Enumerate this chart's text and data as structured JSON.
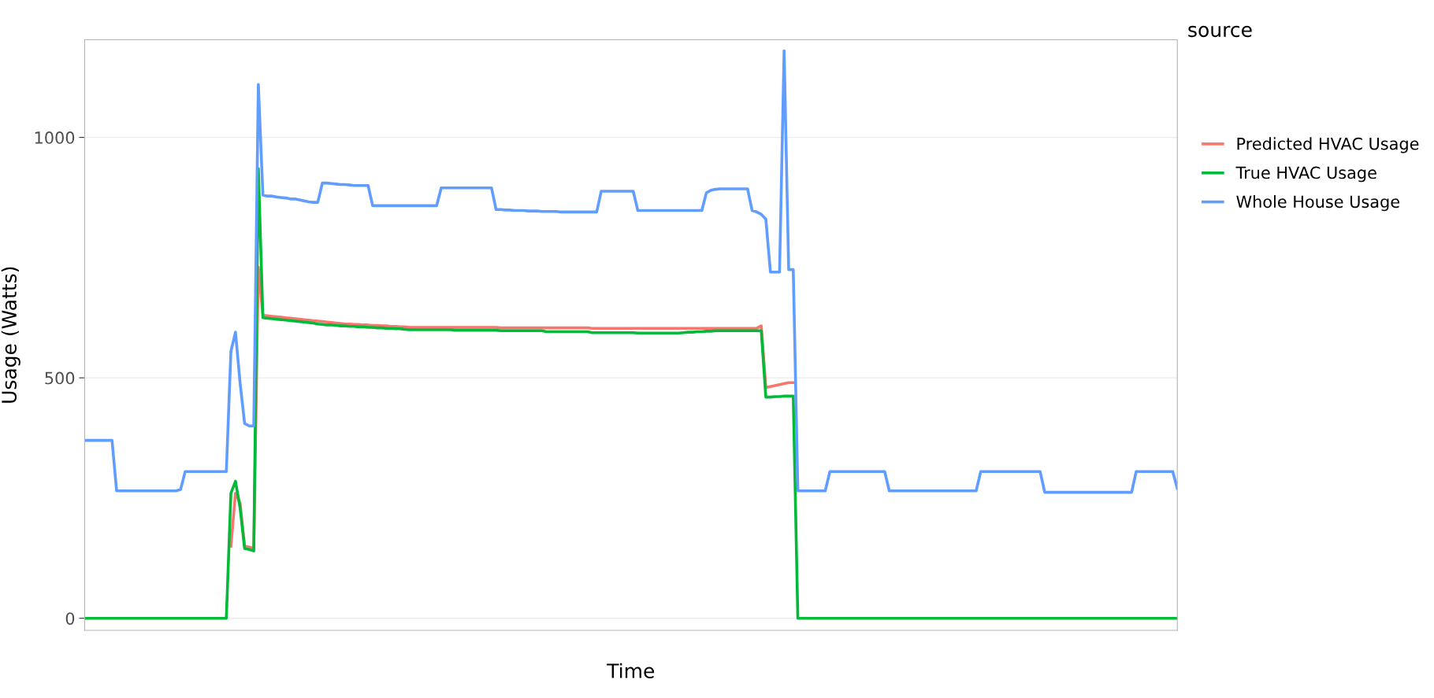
{
  "chart_data": {
    "type": "line",
    "xlabel": "Time",
    "ylabel": "Usage (Watts)",
    "legend_title": "source",
    "legend": "right",
    "grid": "y",
    "tick_labels": "y",
    "ylim": [
      -25,
      1203
    ],
    "yticks": [
      0,
      500,
      1000
    ],
    "categories": [
      null,
      null,
      null,
      null,
      null,
      null,
      null,
      null,
      null,
      null,
      null,
      null,
      null,
      null,
      null,
      null,
      null,
      null,
      null,
      null,
      null,
      null,
      null,
      null,
      null,
      null,
      null,
      null,
      null,
      null,
      null,
      null,
      null,
      null,
      null,
      null,
      null,
      null,
      null,
      null,
      null,
      null,
      null,
      null,
      null,
      null,
      null,
      null,
      null,
      null,
      null,
      null,
      null,
      null,
      null,
      null,
      null,
      null,
      null,
      null,
      null,
      null,
      null,
      null,
      null,
      null,
      null,
      null,
      null,
      null,
      null,
      null,
      null,
      null,
      null,
      null,
      null,
      null,
      null,
      null,
      null,
      null,
      null,
      null,
      null,
      null,
      null,
      null,
      null,
      null,
      null,
      null,
      null,
      null,
      null,
      null,
      null,
      null,
      null,
      null,
      null,
      null,
      null,
      null,
      null,
      null,
      null,
      null,
      null,
      null,
      null,
      null,
      null,
      null,
      null,
      null,
      null,
      null,
      null,
      null,
      null,
      null,
      null,
      null,
      null,
      null,
      null,
      null,
      null,
      null,
      null,
      null,
      null,
      null,
      null,
      null,
      null,
      null,
      null,
      null,
      null,
      null,
      null,
      null,
      null,
      null,
      null,
      null,
      null,
      null,
      null,
      null,
      null,
      null,
      null,
      null,
      null,
      null,
      null,
      null,
      null,
      null,
      null,
      null,
      null,
      null,
      null,
      null,
      null,
      null,
      null,
      null,
      null,
      null,
      null,
      null,
      null,
      null,
      null,
      null,
      null,
      null,
      null,
      null,
      null,
      null,
      null,
      null,
      null,
      null,
      null,
      null,
      null,
      null,
      null,
      null,
      null,
      null,
      null,
      null,
      null,
      null,
      null,
      null,
      null,
      null,
      null,
      null,
      null,
      null,
      null,
      null,
      null,
      null,
      null,
      null,
      null,
      null,
      null,
      null,
      null,
      null,
      null,
      null,
      null,
      null,
      null,
      null,
      null,
      null,
      null,
      null,
      null,
      null,
      null,
      null,
      null,
      null,
      null,
      null
    ],
    "series": [
      {
        "name": "Predicted HVAC Usage",
        "color": "#f8766d",
        "values": [
          null,
          null,
          null,
          null,
          null,
          null,
          null,
          null,
          null,
          null,
          null,
          null,
          null,
          null,
          null,
          null,
          null,
          null,
          null,
          null,
          null,
          null,
          null,
          null,
          null,
          null,
          null,
          null,
          null,
          null,
          null,
          null,
          150,
          260,
          240,
          150,
          148,
          145,
          730,
          630,
          629,
          628,
          627,
          626,
          625,
          624,
          623,
          622,
          621,
          620,
          619,
          618,
          617,
          616,
          615,
          614,
          613,
          612,
          612,
          611,
          611,
          610,
          610,
          609,
          609,
          608,
          608,
          607,
          607,
          606,
          606,
          605,
          605,
          605,
          605,
          605,
          605,
          605,
          605,
          605,
          605,
          605,
          605,
          605,
          605,
          605,
          605,
          605,
          605,
          605,
          605,
          604,
          604,
          604,
          604,
          604,
          604,
          604,
          604,
          604,
          604,
          604,
          604,
          604,
          604,
          604,
          604,
          604,
          604,
          604,
          604,
          603,
          603,
          603,
          603,
          603,
          603,
          603,
          603,
          603,
          603,
          603,
          603,
          603,
          603,
          603,
          603,
          603,
          603,
          603,
          603,
          603,
          603,
          603,
          603,
          603,
          603,
          603,
          603,
          603,
          603,
          603,
          603,
          603,
          603,
          603,
          603,
          603,
          608,
          480,
          482,
          484,
          486,
          488,
          490,
          490,
          null,
          null,
          null,
          null,
          null,
          null,
          null,
          null,
          null,
          null,
          null,
          null,
          null,
          null,
          null,
          null,
          null,
          null,
          null,
          null,
          null,
          null,
          null,
          null,
          null,
          null,
          null,
          null,
          null,
          null,
          null,
          null,
          null,
          null,
          null,
          null,
          null,
          null,
          null,
          null,
          null,
          null,
          null,
          null,
          null,
          null,
          null,
          null,
          null,
          null,
          null,
          null,
          null,
          null,
          null,
          null,
          null,
          null,
          null,
          null,
          null,
          null,
          null,
          null,
          null,
          null,
          null,
          null,
          null,
          null,
          null,
          null,
          null,
          null,
          null,
          null,
          null,
          null,
          null,
          null,
          null,
          null,
          null,
          null
        ]
      },
      {
        "name": "True HVAC Usage",
        "color": "#00ba38",
        "values": [
          0,
          0,
          0,
          0,
          0,
          0,
          0,
          0,
          0,
          0,
          0,
          0,
          0,
          0,
          0,
          0,
          0,
          0,
          0,
          0,
          0,
          0,
          0,
          0,
          0,
          0,
          0,
          0,
          0,
          0,
          0,
          0,
          260,
          285,
          230,
          145,
          143,
          140,
          935,
          625,
          624,
          623,
          622,
          621,
          620,
          619,
          618,
          617,
          616,
          615,
          614,
          612,
          611,
          610,
          610,
          609,
          608,
          608,
          607,
          607,
          606,
          606,
          605,
          605,
          604,
          604,
          603,
          603,
          602,
          602,
          601,
          600,
          600,
          600,
          600,
          600,
          600,
          600,
          600,
          600,
          600,
          599,
          599,
          599,
          599,
          599,
          599,
          599,
          599,
          599,
          599,
          598,
          598,
          598,
          598,
          598,
          598,
          598,
          598,
          598,
          598,
          596,
          596,
          596,
          596,
          596,
          596,
          596,
          596,
          596,
          596,
          594,
          594,
          594,
          594,
          594,
          594,
          594,
          594,
          594,
          594,
          593,
          593,
          593,
          593,
          593,
          593,
          593,
          593,
          593,
          593,
          594,
          595,
          595,
          596,
          596,
          597,
          597,
          598,
          598,
          598,
          598,
          598,
          598,
          598,
          598,
          598,
          598,
          598,
          460,
          460,
          461,
          461,
          462,
          462,
          462,
          0,
          0,
          0,
          0,
          0,
          0,
          0,
          0,
          0,
          0,
          0,
          0,
          0,
          0,
          0,
          0,
          0,
          0,
          0,
          0,
          0,
          0,
          0,
          0,
          0,
          0,
          0,
          0,
          0,
          0,
          0,
          0,
          0,
          0,
          0,
          0,
          0,
          0,
          0,
          0,
          0,
          0,
          0,
          0,
          0,
          0,
          0,
          0,
          0,
          0,
          0,
          0,
          0,
          0,
          0,
          0,
          0,
          0,
          0,
          0,
          0,
          0,
          0,
          0,
          0,
          0,
          0,
          0,
          0,
          0,
          0,
          0,
          0,
          0,
          0,
          0,
          0,
          0,
          0,
          0,
          0,
          0,
          0,
          0
        ]
      },
      {
        "name": "Whole House Usage",
        "color": "#619cff",
        "values": [
          370,
          370,
          370,
          370,
          370,
          370,
          370,
          265,
          265,
          265,
          265,
          265,
          265,
          265,
          265,
          265,
          265,
          265,
          265,
          265,
          265,
          268,
          305,
          305,
          305,
          305,
          305,
          305,
          305,
          305,
          305,
          305,
          555,
          595,
          490,
          405,
          400,
          400,
          1110,
          880,
          878,
          878,
          876,
          875,
          874,
          872,
          872,
          870,
          868,
          866,
          865,
          865,
          905,
          905,
          904,
          903,
          902,
          902,
          901,
          900,
          900,
          900,
          900,
          858,
          858,
          858,
          858,
          858,
          858,
          858,
          858,
          858,
          858,
          858,
          858,
          858,
          858,
          858,
          895,
          895,
          895,
          895,
          895,
          895,
          895,
          895,
          895,
          895,
          895,
          895,
          850,
          850,
          849,
          849,
          848,
          848,
          848,
          847,
          847,
          847,
          846,
          846,
          846,
          846,
          845,
          845,
          845,
          845,
          845,
          845,
          845,
          845,
          845,
          888,
          888,
          888,
          888,
          888,
          888,
          888,
          888,
          848,
          848,
          848,
          848,
          848,
          848,
          848,
          848,
          848,
          848,
          848,
          848,
          848,
          848,
          848,
          885,
          890,
          892,
          893,
          893,
          893,
          893,
          893,
          893,
          893,
          848,
          845,
          840,
          830,
          720,
          720,
          720,
          1180,
          725,
          725,
          265,
          265,
          265,
          265,
          265,
          265,
          265,
          305,
          305,
          305,
          305,
          305,
          305,
          305,
          305,
          305,
          305,
          305,
          305,
          305,
          265,
          265,
          265,
          265,
          265,
          265,
          265,
          265,
          265,
          265,
          265,
          265,
          265,
          265,
          265,
          265,
          265,
          265,
          265,
          265,
          305,
          305,
          305,
          305,
          305,
          305,
          305,
          305,
          305,
          305,
          305,
          305,
          305,
          305,
          262,
          262,
          262,
          262,
          262,
          262,
          262,
          262,
          262,
          262,
          262,
          262,
          262,
          262,
          262,
          262,
          262,
          262,
          262,
          262,
          305,
          305,
          305,
          305,
          305,
          305,
          305,
          305,
          305,
          270
        ]
      }
    ]
  }
}
